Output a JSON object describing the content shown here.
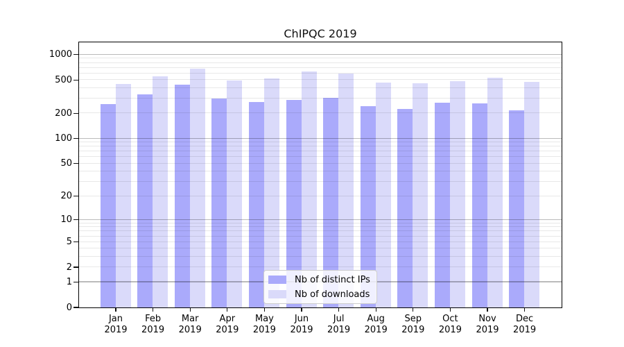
{
  "title": "ChIPQC 2019",
  "chart_data": {
    "type": "bar",
    "title": "ChIPQC 2019",
    "categories": [
      "Jan",
      "Feb",
      "Mar",
      "Apr",
      "May",
      "Jun",
      "Jul",
      "Aug",
      "Sep",
      "Oct",
      "Nov",
      "Dec"
    ],
    "year_label": "2019",
    "series": [
      {
        "name": "Nb of distinct IPs",
        "color": "#aaaafb",
        "values": [
          257,
          336,
          439,
          301,
          272,
          288,
          305,
          243,
          223,
          268,
          260,
          216
        ]
      },
      {
        "name": "Nb of downloads",
        "color": "#dadafa",
        "values": [
          447,
          551,
          681,
          492,
          520,
          630,
          594,
          464,
          457,
          483,
          527,
          473
        ]
      }
    ],
    "yscale": "log1p",
    "ylim": [
      0,
      1400
    ],
    "y_ticks": [
      0,
      1,
      2,
      5,
      10,
      20,
      50,
      100,
      200,
      500,
      1000
    ],
    "grid": "horizontal-both-minor-and-major",
    "legend_position": "lower-center",
    "xlabel": "",
    "ylabel": ""
  }
}
